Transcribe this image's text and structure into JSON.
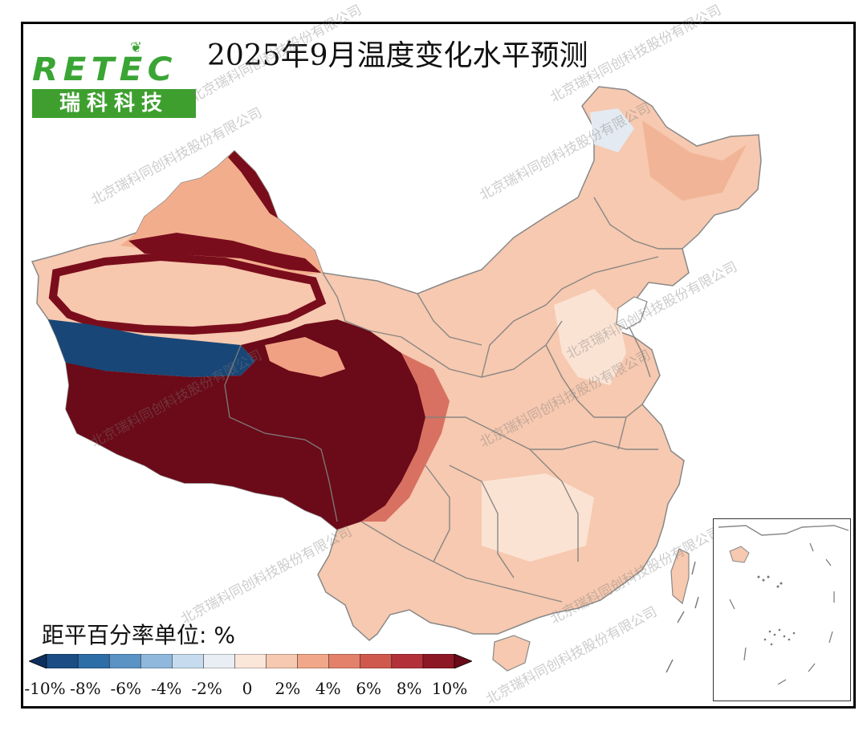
{
  "title": "2025年9月温度变化水平预测",
  "logo": {
    "brand_en": "RETEC",
    "brand_cn": "瑞科科技"
  },
  "watermark": "北京瑞科同创科技股份有限公司",
  "legend": {
    "unit_label": "距平百分率单位: %",
    "ticks": [
      "-10%",
      "-8%",
      "-6%",
      "-4%",
      "-2%",
      "0",
      "2%",
      "4%",
      "6%",
      "8%",
      "10%"
    ],
    "colors": [
      "#0d2f5e",
      "#1c4e85",
      "#2e6ea6",
      "#5a93c4",
      "#8fb8dc",
      "#c6dcee",
      "#e8eef4",
      "#fbe6da",
      "#f7c9b1",
      "#f1a789",
      "#e4816a",
      "#d0594e",
      "#b3323a",
      "#8e1726",
      "#6b0a18"
    ]
  },
  "map": {
    "regions": [
      {
        "name": "xinjiang-north",
        "anomaly_level": "warm-strong"
      },
      {
        "name": "tarim-basin",
        "anomaly_level": "warm-moderate"
      },
      {
        "name": "kunlun-belt",
        "anomaly_level": "cool-strong"
      },
      {
        "name": "tibet-plateau",
        "anomaly_level": "warm-extreme"
      },
      {
        "name": "eastern-china",
        "anomaly_level": "warm-slight"
      }
    ]
  }
}
